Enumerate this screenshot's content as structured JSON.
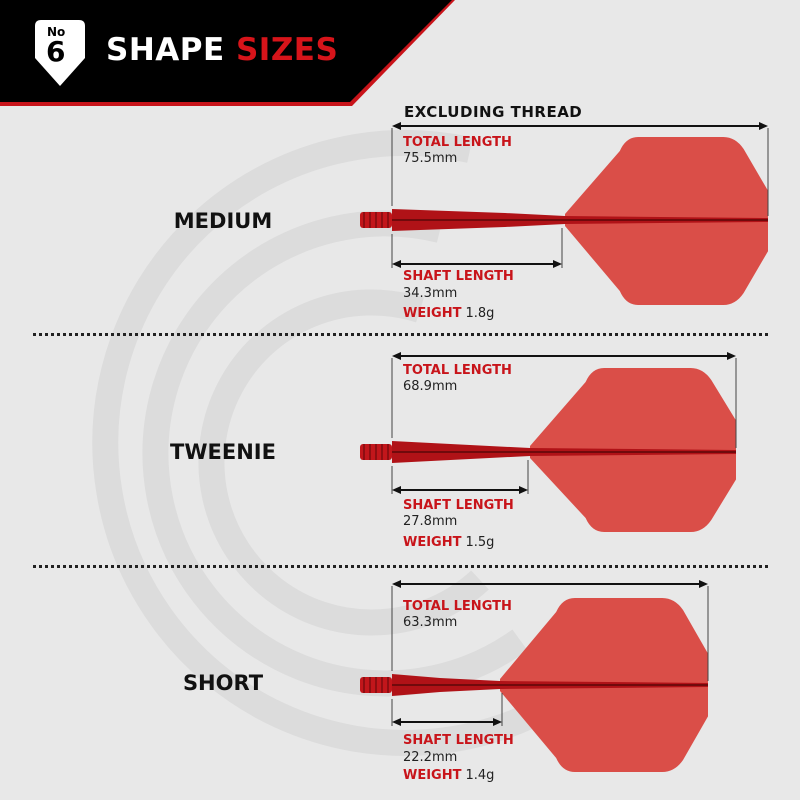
{
  "header": {
    "badge_prefix": "No",
    "badge_number": "6",
    "title_white": "SHAPE",
    "title_red": "SIZES"
  },
  "note": "EXCLUDING THREAD",
  "labels": {
    "total": "TOTAL LENGTH",
    "shaft": "SHAFT LENGTH",
    "weight": "WEIGHT"
  },
  "sizes": [
    {
      "name": "MEDIUM",
      "total_length": "75.5mm",
      "shaft_length": "34.3mm",
      "weight": "1.8g"
    },
    {
      "name": "TWEENIE",
      "total_length": "68.9mm",
      "shaft_length": "27.8mm",
      "weight": "1.5g"
    },
    {
      "name": "SHORT",
      "total_length": "63.3mm",
      "shaft_length": "22.2mm",
      "weight": "1.4g"
    }
  ],
  "colors": {
    "accent": "#d7141a",
    "flight": "#d9463f",
    "header": "#000000",
    "background": "#e8e8e8"
  }
}
